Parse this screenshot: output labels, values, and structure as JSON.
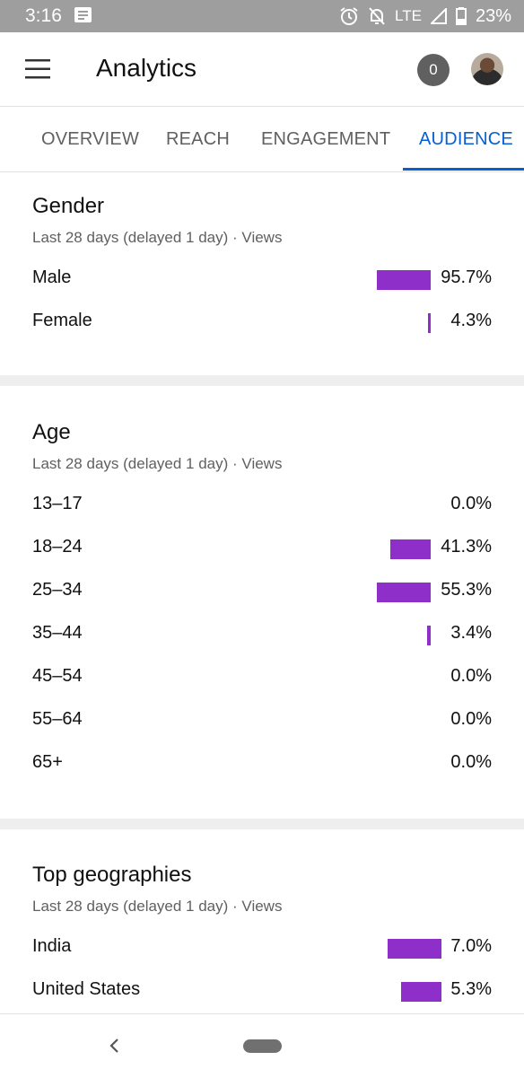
{
  "status_bar": {
    "time": "3:16",
    "network": "LTE",
    "battery": "23%",
    "icons": [
      "message-icon",
      "alarm-icon",
      "notifications-off-icon",
      "signal-icon",
      "battery-icon"
    ]
  },
  "app_bar": {
    "title": "Analytics",
    "notification_count": "0",
    "icons": [
      "menu-icon",
      "avatar"
    ]
  },
  "tabs": [
    {
      "label": "OVERVIEW",
      "active": false
    },
    {
      "label": "REACH",
      "active": false
    },
    {
      "label": "ENGAGEMENT",
      "active": false
    },
    {
      "label": "AUDIENCE",
      "active": true
    }
  ],
  "colors": {
    "accent": "#065fd4",
    "bar": "#8e2fc9",
    "status_bar": "#9e9e9e"
  },
  "gender": {
    "title": "Gender",
    "subtitle": "Last 28 days (delayed 1 day) · Views",
    "rows": [
      {
        "label": "Male",
        "value": "95.7%",
        "fraction": 0.957
      },
      {
        "label": "Female",
        "value": "4.3%",
        "fraction": 0.043
      }
    ]
  },
  "age": {
    "title": "Age",
    "subtitle": "Last 28 days (delayed 1 day) · Views",
    "rows": [
      {
        "label": "13–17",
        "value": "0.0%",
        "fraction": 0.0
      },
      {
        "label": "18–24",
        "value": "41.3%",
        "fraction": 0.413
      },
      {
        "label": "25–34",
        "value": "55.3%",
        "fraction": 0.553
      },
      {
        "label": "35–44",
        "value": "3.4%",
        "fraction": 0.034
      },
      {
        "label": "45–54",
        "value": "0.0%",
        "fraction": 0.0
      },
      {
        "label": "55–64",
        "value": "0.0%",
        "fraction": 0.0
      },
      {
        "label": "65+",
        "value": "0.0%",
        "fraction": 0.0
      }
    ]
  },
  "geographies": {
    "title": "Top geographies",
    "subtitle": "Last 28 days (delayed 1 day) · Views",
    "rows": [
      {
        "label": "India",
        "value": "7.0%",
        "fraction": 0.07
      },
      {
        "label": "United States",
        "value": "5.3%",
        "fraction": 0.053
      }
    ]
  },
  "nav_bar": {
    "icons": [
      "back-icon",
      "home-pill"
    ]
  }
}
